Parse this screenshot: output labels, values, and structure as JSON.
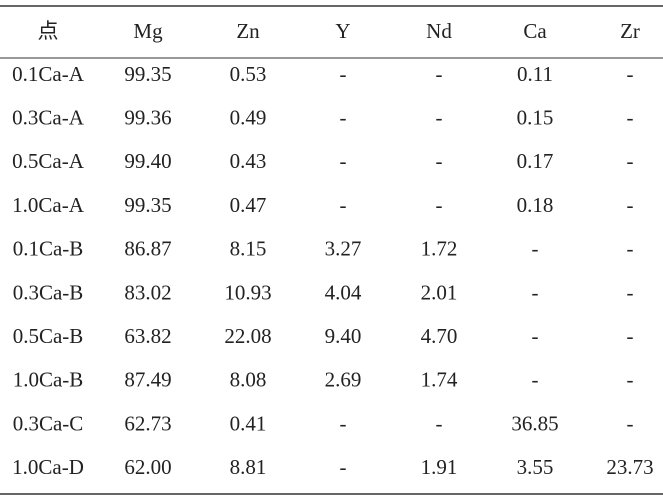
{
  "table": {
    "header": [
      "点",
      "Mg",
      "Zn",
      "Y",
      "Nd",
      "Ca",
      "Zr"
    ],
    "rows": [
      [
        "0.1Ca-A",
        "99.35",
        "0.53",
        "-",
        "-",
        "0.11",
        "-"
      ],
      [
        "0.3Ca-A",
        "99.36",
        "0.49",
        "-",
        "-",
        "0.15",
        "-"
      ],
      [
        "0.5Ca-A",
        "99.40",
        "0.43",
        "-",
        "-",
        "0.17",
        "-"
      ],
      [
        "1.0Ca-A",
        "99.35",
        "0.47",
        "-",
        "-",
        "0.18",
        "-"
      ],
      [
        "0.1Ca-B",
        "86.87",
        "8.15",
        "3.27",
        "1.72",
        "-",
        "-"
      ],
      [
        "0.3Ca-B",
        "83.02",
        "10.93",
        "4.04",
        "2.01",
        "-",
        "-"
      ],
      [
        "0.5Ca-B",
        "63.82",
        "22.08",
        "9.40",
        "4.70",
        "-",
        "-"
      ],
      [
        "1.0Ca-B",
        "87.49",
        "8.08",
        "2.69",
        "1.74",
        "-",
        "-"
      ],
      [
        "0.3Ca-C",
        "62.73",
        "0.41",
        "-",
        "-",
        "36.85",
        "-"
      ],
      [
        "1.0Ca-D",
        "62.00",
        "8.81",
        "-",
        "1.91",
        "3.55",
        "23.73"
      ]
    ]
  }
}
